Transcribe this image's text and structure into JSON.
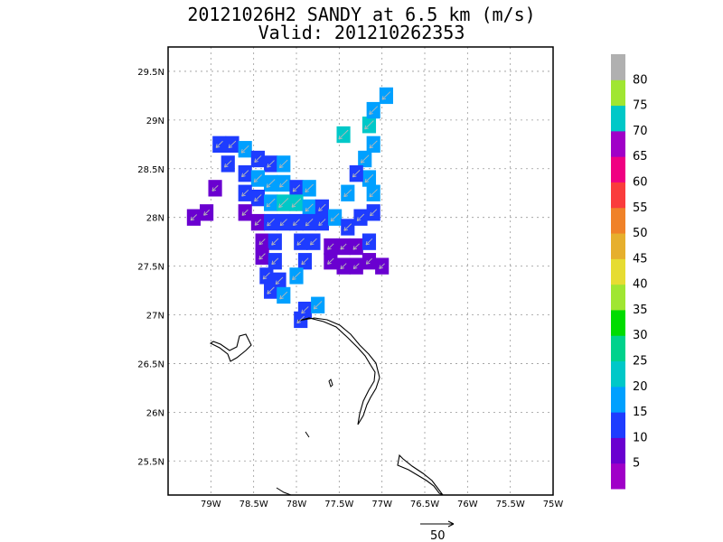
{
  "chart_data": {
    "type": "heatmap",
    "title": "20121026H2 SANDY at 6.5 km (m/s)",
    "subtitle": "Valid: 201210262353",
    "xlabel": "",
    "ylabel": "",
    "xlim": [
      -79.5,
      -75
    ],
    "ylim": [
      25.15,
      29.75
    ],
    "x_ticks": [
      "79W",
      "78.5W",
      "78W",
      "77.5W",
      "77W",
      "76.5W",
      "76W",
      "75.5W",
      "75W"
    ],
    "x_tick_values": [
      -79,
      -78.5,
      -78,
      -77.5,
      -77,
      -76.5,
      -76,
      -75.5,
      -75
    ],
    "y_ticks": [
      "25.5N",
      "26N",
      "26.5N",
      "27N",
      "27.5N",
      "28N",
      "28.5N",
      "29N",
      "29.5N"
    ],
    "y_tick_values": [
      25.5,
      26,
      26.5,
      27,
      27.5,
      28,
      28.5,
      29,
      29.5
    ],
    "grid": true,
    "colorbar": {
      "labels": [
        "5",
        "10",
        "15",
        "20",
        "25",
        "30",
        "35",
        "40",
        "45",
        "50",
        "55",
        "60",
        "65",
        "70",
        "75",
        "80"
      ],
      "colors": [
        "#a000c8",
        "#6a00d0",
        "#1e3cff",
        "#00a0ff",
        "#00c8c8",
        "#00d28c",
        "#00dc00",
        "#a0e632",
        "#e6dc32",
        "#e6af2d",
        "#f08228",
        "#fa3c3c",
        "#f00082",
        "#a000c8",
        "#00c8c8",
        "#a0e632",
        "#b0b0b0"
      ]
    },
    "wind_reference": {
      "label": "50",
      "value": 50
    },
    "cells": [
      {
        "lon": -78.9,
        "lat": 28.75,
        "speed": 12
      },
      {
        "lon": -78.75,
        "lat": 28.75,
        "speed": 14
      },
      {
        "lon": -78.6,
        "lat": 28.7,
        "speed": 15
      },
      {
        "lon": -78.45,
        "lat": 28.6,
        "speed": 12
      },
      {
        "lon": -78.3,
        "lat": 28.55,
        "speed": 14
      },
      {
        "lon": -78.15,
        "lat": 28.55,
        "speed": 18
      },
      {
        "lon": -78.8,
        "lat": 28.55,
        "speed": 13
      },
      {
        "lon": -78.6,
        "lat": 28.45,
        "speed": 12
      },
      {
        "lon": -78.45,
        "lat": 28.4,
        "speed": 16
      },
      {
        "lon": -78.3,
        "lat": 28.35,
        "speed": 19
      },
      {
        "lon": -78.15,
        "lat": 28.35,
        "speed": 17
      },
      {
        "lon": -78.0,
        "lat": 28.3,
        "speed": 13
      },
      {
        "lon": -77.85,
        "lat": 28.3,
        "speed": 18
      },
      {
        "lon": -78.6,
        "lat": 28.25,
        "speed": 11
      },
      {
        "lon": -78.45,
        "lat": 28.2,
        "speed": 13
      },
      {
        "lon": -78.3,
        "lat": 28.15,
        "speed": 19
      },
      {
        "lon": -78.15,
        "lat": 28.15,
        "speed": 24
      },
      {
        "lon": -78.0,
        "lat": 28.15,
        "speed": 22
      },
      {
        "lon": -77.85,
        "lat": 28.1,
        "speed": 16
      },
      {
        "lon": -77.7,
        "lat": 28.1,
        "speed": 13
      },
      {
        "lon": -78.6,
        "lat": 28.05,
        "speed": 8
      },
      {
        "lon": -78.45,
        "lat": 27.95,
        "speed": 9
      },
      {
        "lon": -78.3,
        "lat": 27.95,
        "speed": 14
      },
      {
        "lon": -78.15,
        "lat": 27.95,
        "speed": 12
      },
      {
        "lon": -78.0,
        "lat": 27.95,
        "speed": 11
      },
      {
        "lon": -77.85,
        "lat": 27.95,
        "speed": 14
      },
      {
        "lon": -77.7,
        "lat": 27.95,
        "speed": 12
      },
      {
        "lon": -77.55,
        "lat": 28.0,
        "speed": 18
      },
      {
        "lon": -77.4,
        "lat": 27.9,
        "speed": 14
      },
      {
        "lon": -77.25,
        "lat": 28.0,
        "speed": 13
      },
      {
        "lon": -77.1,
        "lat": 28.05,
        "speed": 12
      },
      {
        "lon": -78.4,
        "lat": 27.75,
        "speed": 8
      },
      {
        "lon": -78.25,
        "lat": 27.75,
        "speed": 12
      },
      {
        "lon": -77.95,
        "lat": 27.75,
        "speed": 13
      },
      {
        "lon": -77.8,
        "lat": 27.75,
        "speed": 11
      },
      {
        "lon": -77.6,
        "lat": 27.7,
        "speed": 9
      },
      {
        "lon": -77.45,
        "lat": 27.7,
        "speed": 8
      },
      {
        "lon": -77.3,
        "lat": 27.7,
        "speed": 9
      },
      {
        "lon": -77.15,
        "lat": 27.75,
        "speed": 10
      },
      {
        "lon": -78.4,
        "lat": 27.6,
        "speed": 9
      },
      {
        "lon": -78.25,
        "lat": 27.55,
        "speed": 11
      },
      {
        "lon": -77.9,
        "lat": 27.55,
        "speed": 12
      },
      {
        "lon": -77.6,
        "lat": 27.55,
        "speed": 9
      },
      {
        "lon": -77.45,
        "lat": 27.5,
        "speed": 8
      },
      {
        "lon": -77.3,
        "lat": 27.5,
        "speed": 7
      },
      {
        "lon": -77.15,
        "lat": 27.55,
        "speed": 8
      },
      {
        "lon": -77.0,
        "lat": 27.5,
        "speed": 6
      },
      {
        "lon": -78.35,
        "lat": 27.4,
        "speed": 12
      },
      {
        "lon": -78.2,
        "lat": 27.35,
        "speed": 14
      },
      {
        "lon": -78.0,
        "lat": 27.4,
        "speed": 18
      },
      {
        "lon": -78.3,
        "lat": 27.25,
        "speed": 13
      },
      {
        "lon": -78.15,
        "lat": 27.2,
        "speed": 15
      },
      {
        "lon": -77.9,
        "lat": 27.05,
        "speed": 13
      },
      {
        "lon": -77.75,
        "lat": 27.1,
        "speed": 18
      },
      {
        "lon": -77.95,
        "lat": 26.95,
        "speed": 14
      },
      {
        "lon": -79.2,
        "lat": 28.0,
        "speed": 9
      },
      {
        "lon": -79.05,
        "lat": 28.05,
        "speed": 7
      },
      {
        "lon": -78.95,
        "lat": 28.3,
        "speed": 8
      },
      {
        "lon": -77.15,
        "lat": 28.4,
        "speed": 18
      },
      {
        "lon": -77.1,
        "lat": 28.25,
        "speed": 17
      },
      {
        "lon": -77.2,
        "lat": 28.6,
        "speed": 18
      },
      {
        "lon": -77.1,
        "lat": 28.75,
        "speed": 16
      },
      {
        "lon": -77.15,
        "lat": 28.95,
        "speed": 21
      },
      {
        "lon": -77.1,
        "lat": 29.1,
        "speed": 19
      },
      {
        "lon": -76.95,
        "lat": 29.25,
        "speed": 18
      },
      {
        "lon": -77.45,
        "lat": 28.85,
        "speed": 24
      },
      {
        "lon": -77.3,
        "lat": 28.45,
        "speed": 14
      },
      {
        "lon": -77.4,
        "lat": 28.25,
        "speed": 15
      }
    ]
  }
}
